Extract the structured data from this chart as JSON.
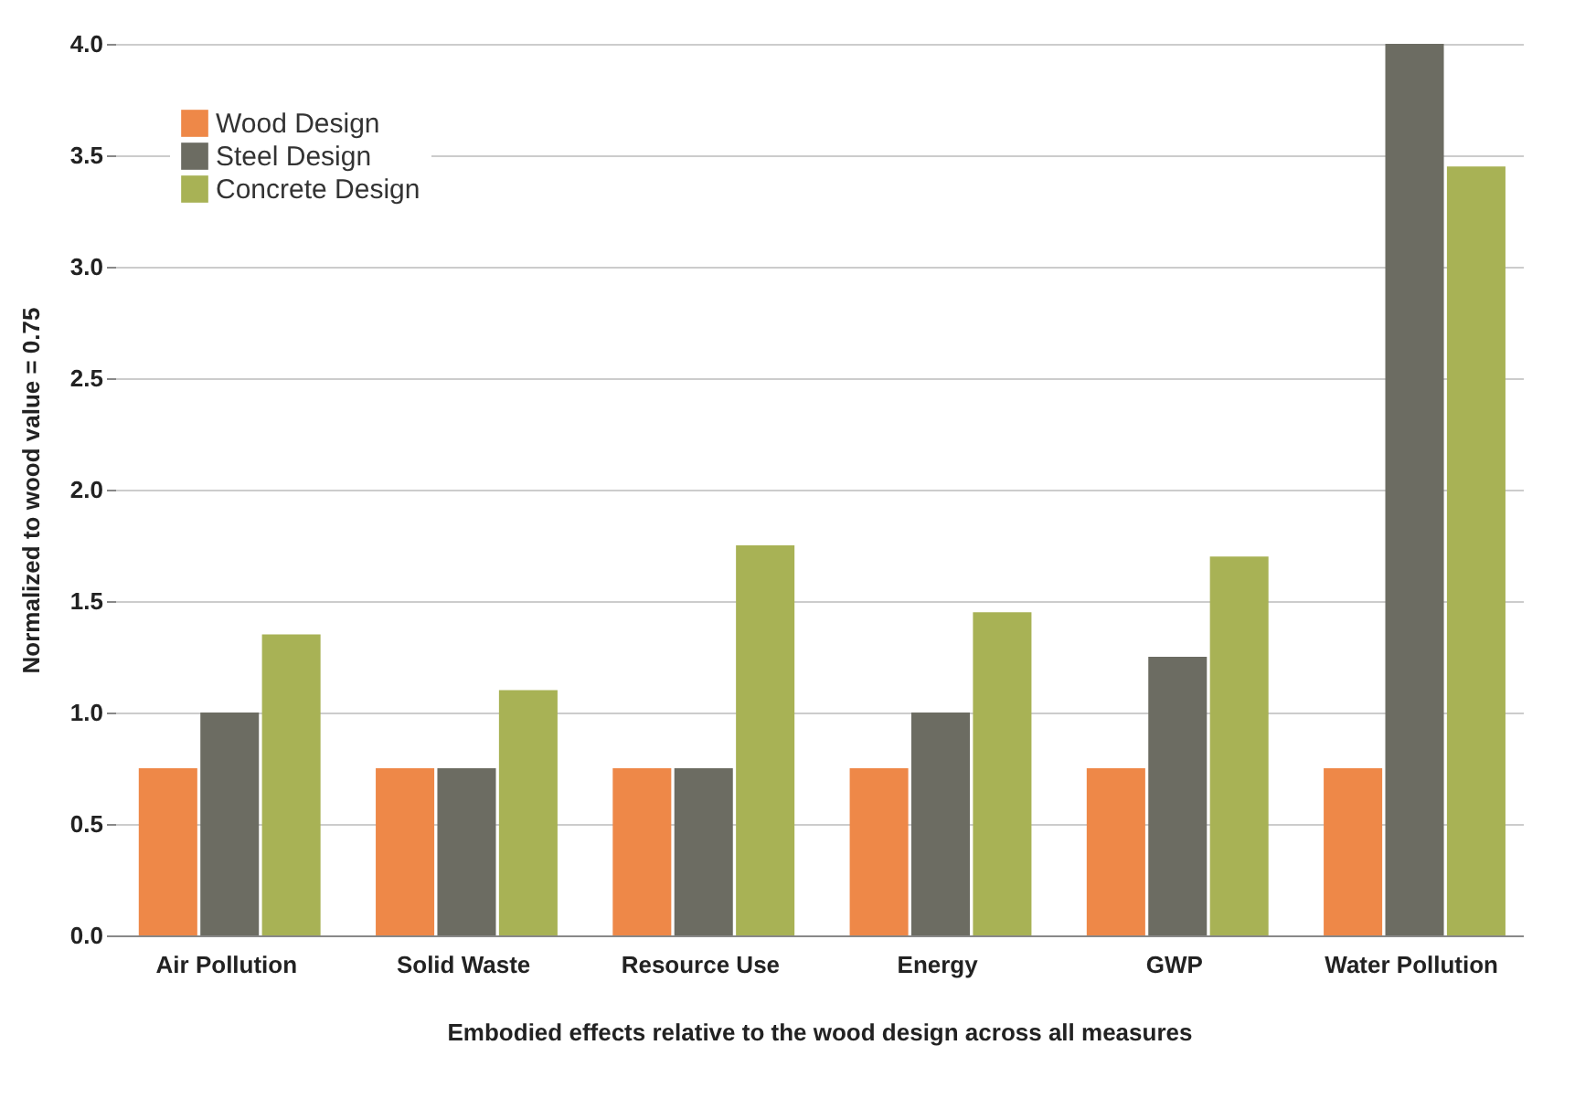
{
  "chart_data": {
    "type": "bar",
    "xlabel": "Embodied effects relative to the wood design across all measures",
    "ylabel": "Normalized to wood value = 0.75",
    "categories": [
      "Air Pollution",
      "Solid Waste",
      "Resource Use",
      "Energy",
      "GWP",
      "Water Pollution"
    ],
    "series": [
      {
        "name": "Wood Design",
        "color": "#ee8848",
        "values": [
          0.75,
          0.75,
          0.75,
          0.75,
          0.75,
          0.75
        ]
      },
      {
        "name": "Steel Design",
        "color": "#6c6c62",
        "values": [
          1.0,
          0.75,
          0.75,
          1.0,
          1.25,
          4.0
        ]
      },
      {
        "name": "Concrete Design",
        "color": "#a8b255",
        "values": [
          1.35,
          1.1,
          1.75,
          1.45,
          1.7,
          3.45
        ]
      }
    ],
    "ylim": [
      0,
      4
    ],
    "yticks": [
      {
        "value": 0,
        "label": "0.0"
      },
      0.5,
      {
        "value": 1,
        "label": "1.0"
      },
      1.5,
      {
        "value": 2,
        "label": "2.0"
      },
      2.5,
      {
        "value": 3,
        "label": "3.0"
      },
      3.5,
      {
        "value": 4,
        "label": "4.0"
      }
    ],
    "grid": "y",
    "legend": "top left"
  }
}
